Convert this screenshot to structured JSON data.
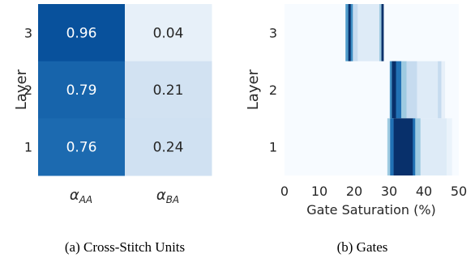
{
  "chart_data": [
    {
      "type": "heatmap",
      "ylabel": "Layer",
      "rows": [
        "3",
        "2",
        "1"
      ],
      "cols_tex": [
        {
          "base": "α",
          "sub": "AA"
        },
        {
          "base": "α",
          "sub": "BA"
        }
      ],
      "values": [
        [
          "0.96",
          "0.04"
        ],
        [
          "0.79",
          "0.21"
        ],
        [
          "0.76",
          "0.24"
        ]
      ],
      "colors": [
        [
          "#08519c",
          "#e7f0f9"
        ],
        [
          "#1764ab",
          "#d2e2f2"
        ],
        [
          "#1c6ab0",
          "#d0e1f2"
        ]
      ],
      "caption": "(a) Cross-Stitch Units"
    },
    {
      "type": "heatmap",
      "ylabel": "Layer",
      "xlabel": "Gate Saturation (%)",
      "xticks": [
        "0",
        "10",
        "20",
        "30",
        "40",
        "50"
      ],
      "xlim": [
        0,
        50
      ],
      "rows": [
        "3",
        "2",
        "1"
      ],
      "background": "#f7fbff",
      "bands": [
        [
          {
            "from": 17.5,
            "to": 18.3,
            "color": "#4f9bcb"
          },
          {
            "from": 18.3,
            "to": 19.0,
            "color": "#08306b"
          },
          {
            "from": 19.0,
            "to": 19.6,
            "color": "#3e8ec4"
          },
          {
            "from": 19.6,
            "to": 21.0,
            "color": "#c6dbef"
          },
          {
            "from": 21.0,
            "to": 27.2,
            "color": "#deebf7"
          },
          {
            "from": 27.2,
            "to": 27.8,
            "color": "#9ecae1"
          },
          {
            "from": 27.8,
            "to": 28.4,
            "color": "#08306b"
          }
        ],
        [
          {
            "from": 30.2,
            "to": 30.8,
            "color": "#4292c6"
          },
          {
            "from": 30.8,
            "to": 32.0,
            "color": "#08306b"
          },
          {
            "from": 32.0,
            "to": 33.5,
            "color": "#2171b5"
          },
          {
            "from": 33.5,
            "to": 35.0,
            "color": "#9ecae1"
          },
          {
            "from": 35.0,
            "to": 38.0,
            "color": "#c6dbef"
          },
          {
            "from": 38.0,
            "to": 44.0,
            "color": "#deebf7"
          },
          {
            "from": 44.0,
            "to": 45.0,
            "color": "#c6dbef"
          },
          {
            "from": 45.0,
            "to": 46.0,
            "color": "#e7f0f9"
          }
        ],
        [
          {
            "from": 29.5,
            "to": 30.3,
            "color": "#9ecae1"
          },
          {
            "from": 30.3,
            "to": 31.3,
            "color": "#2171b5"
          },
          {
            "from": 31.3,
            "to": 36.8,
            "color": "#08306b"
          },
          {
            "from": 36.8,
            "to": 37.5,
            "color": "#2171b5"
          },
          {
            "from": 37.5,
            "to": 39.0,
            "color": "#9ecae1"
          },
          {
            "from": 39.0,
            "to": 46.5,
            "color": "#deebf7"
          },
          {
            "from": 46.5,
            "to": 48.0,
            "color": "#eaf3fb"
          }
        ]
      ],
      "caption": "(b) Gates"
    }
  ]
}
